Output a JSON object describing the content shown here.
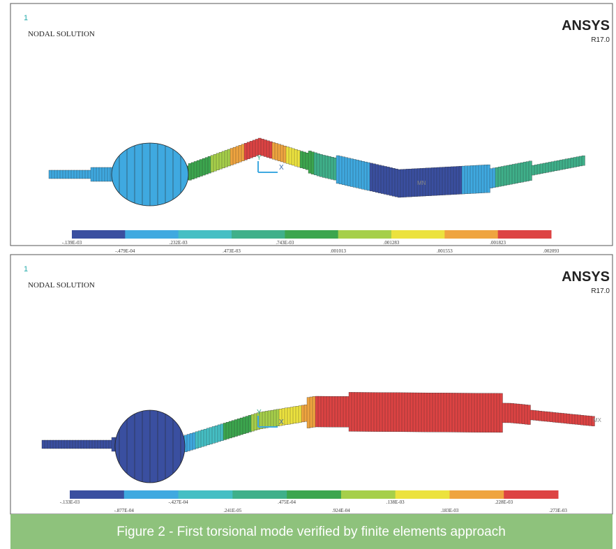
{
  "panels": [
    {
      "number": "1",
      "title": "NODAL SOLUTION",
      "brand": "ANSYS",
      "version": "R17.0",
      "axis_y": "Y",
      "axis_x": "X",
      "marker": "MN",
      "legend_labels": [
        "-.139E-03",
        "-.479E-04",
        ".232E-03",
        ".473E-03",
        ".743E-03",
        ".001013",
        ".001283",
        ".001553",
        ".001823",
        ".002093"
      ]
    },
    {
      "number": "1",
      "title": "NODAL SOLUTION",
      "brand": "ANSYS",
      "version": "R17.0",
      "axis_y": "Y",
      "axis_x": "X",
      "marker": "MX",
      "legend_labels": [
        "-.133E-03",
        "-.877E-04",
        "-.427E-04",
        ".241E-05",
        ".475E-04",
        ".924E-04",
        ".138E-03",
        ".183E-03",
        ".228E-03",
        ".273E-03"
      ]
    }
  ],
  "caption": "Figure 2 - First torsional mode verified by finite elements approach"
}
